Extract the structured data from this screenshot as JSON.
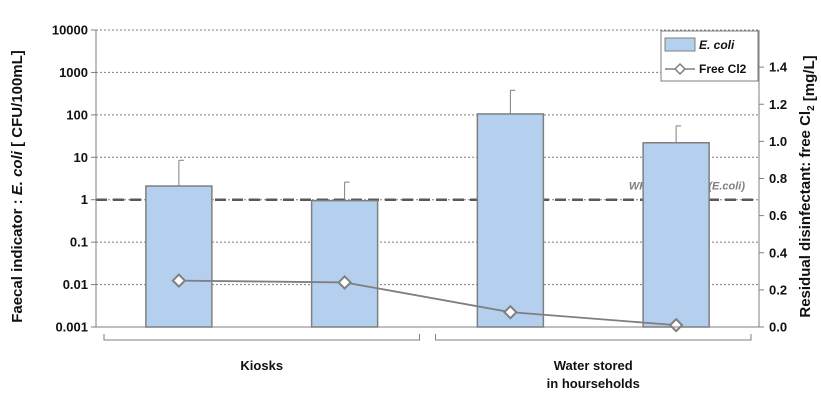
{
  "chart_data": {
    "type": "bar",
    "groups": [
      {
        "label_lines": [
          "Kiosks"
        ],
        "bar_count": 2
      },
      {
        "label_lines": [
          "Water stored",
          "in hourseholds"
        ],
        "bar_count": 2
      }
    ],
    "series": [
      {
        "name": "E. coli",
        "kind": "bar",
        "axis": "left",
        "values": [
          2.1,
          0.95,
          105,
          22
        ],
        "error_upper": [
          8.5,
          2.6,
          380,
          55
        ],
        "color": "#b4d0ee",
        "edge_color": "#7f7f7f"
      },
      {
        "name": "Free Cl2",
        "kind": "line",
        "axis": "right",
        "values": [
          0.25,
          0.24,
          0.08,
          0.01
        ],
        "color": "#7f7f7f",
        "marker": "open-diamond"
      }
    ],
    "y_left": {
      "label_parts": [
        {
          "text": "Faecal indicator : "
        },
        {
          "text": "E. coli",
          "italic": true
        },
        {
          "text": " [ CFU/100mL]"
        }
      ],
      "scale": "log",
      "ylim": [
        0.001,
        10000
      ],
      "ticks": [
        "0.001",
        "0.01",
        "0.1",
        "1",
        "10",
        "100",
        "1000",
        "10000"
      ]
    },
    "y_right": {
      "label_parts": [
        {
          "text": "Residual disinfectant: free Cl"
        },
        {
          "text": "2",
          "sub": true
        },
        {
          "text": " [mg/L]"
        }
      ],
      "scale": "linear",
      "ylim": [
        0,
        1.6
      ],
      "ticks": [
        "0.0",
        "0.2",
        "0.4",
        "0.6",
        "0.8",
        "1.0",
        "1.2",
        "1.4"
      ]
    },
    "reference_line": {
      "value": 1,
      "axis": "left",
      "label": "WHO standard (E.coli)",
      "color": "#595959"
    },
    "grid": true,
    "legend": {
      "placement": "top-right"
    }
  }
}
